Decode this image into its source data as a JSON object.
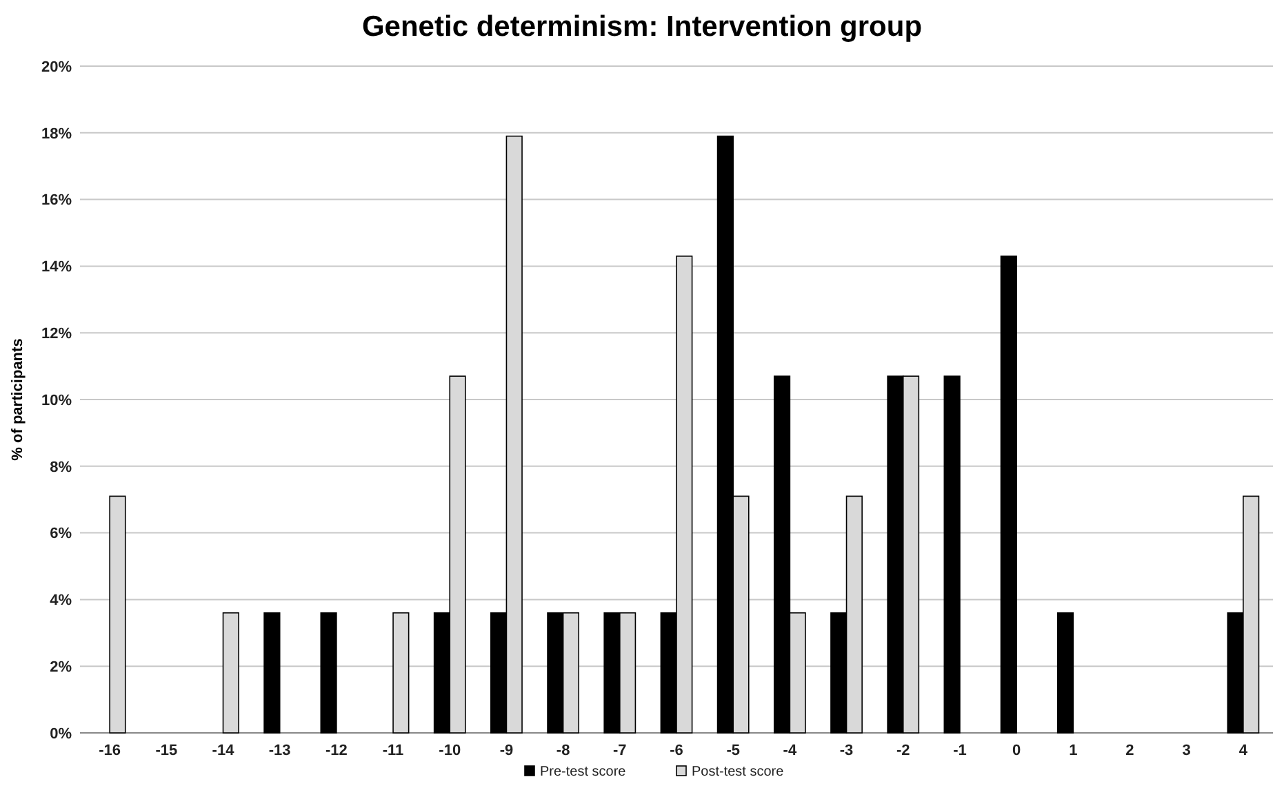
{
  "chart_data": {
    "type": "bar",
    "title": "Genetic determinism: Intervention group",
    "ylabel": "% of participants",
    "categories": [
      "-16",
      "-15",
      "-14",
      "-13",
      "-12",
      "-11",
      "-10",
      "-9",
      "-8",
      "-7",
      "-6",
      "-5",
      "-4",
      "-3",
      "-2",
      "-1",
      "0",
      "1",
      "2",
      "3",
      "4"
    ],
    "series": [
      {
        "name": "Pre-test score",
        "color": "#000000",
        "values": [
          0,
          0,
          0,
          3.6,
          3.6,
          0,
          3.6,
          3.6,
          3.6,
          3.6,
          3.6,
          17.9,
          10.7,
          3.6,
          10.7,
          10.7,
          14.3,
          3.6,
          0,
          0,
          3.6
        ]
      },
      {
        "name": "Post-test score",
        "color": "#d9d9d9",
        "values": [
          7.1,
          0,
          3.6,
          0,
          0,
          3.6,
          10.7,
          17.9,
          3.6,
          3.6,
          14.3,
          7.1,
          3.6,
          7.1,
          10.7,
          0,
          0,
          0,
          0,
          0,
          7.1
        ]
      }
    ],
    "ylim": [
      0,
      20
    ],
    "yticks": [
      {
        "value": 0,
        "label": "0%"
      },
      {
        "value": 2,
        "label": "2%"
      },
      {
        "value": 4,
        "label": "4%"
      },
      {
        "value": 6,
        "label": "6%"
      },
      {
        "value": 8,
        "label": "8%"
      },
      {
        "value": 10,
        "label": "10%"
      },
      {
        "value": 12,
        "label": "12%"
      },
      {
        "value": 14,
        "label": "14%"
      },
      {
        "value": 16,
        "label": "16%"
      },
      {
        "value": 18,
        "label": "18%"
      },
      {
        "value": 20,
        "label": "20%"
      }
    ],
    "grid": "y",
    "legend": "bottom"
  }
}
